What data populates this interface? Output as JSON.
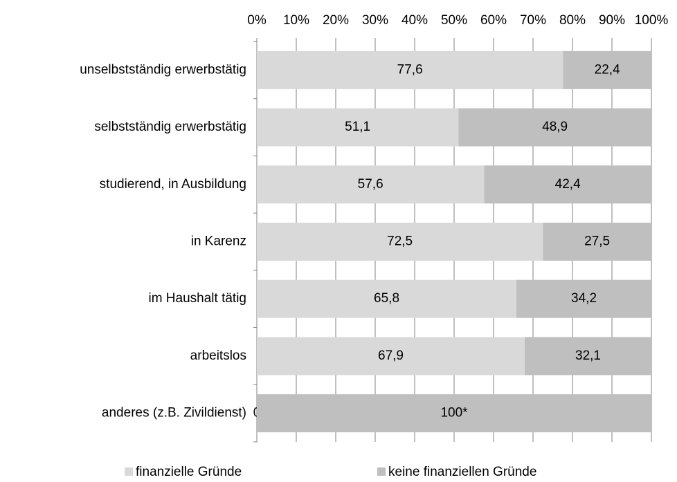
{
  "chart_data": {
    "type": "stacked-bar-horizontal",
    "categories": [
      "unselbstständig erwerbstätig",
      "selbstständig erwerbstätig",
      "studierend, in Ausbildung",
      "in Karenz",
      "im Haushalt tätig",
      "arbeitslos",
      "anderes (z.B. Zivildienst)"
    ],
    "series": [
      {
        "name": "finanzielle Gründe",
        "color": "#d9d9d9",
        "values": [
          77.6,
          51.1,
          57.6,
          72.5,
          65.8,
          67.9,
          0
        ],
        "value_labels": [
          "77,6",
          "51,1",
          "57,6",
          "72,5",
          "65,8",
          "67,9",
          "0"
        ]
      },
      {
        "name": "keine finanziellen Gründe",
        "color": "#bfbfbf",
        "values": [
          22.4,
          48.9,
          42.4,
          27.5,
          34.2,
          32.1,
          100
        ],
        "value_labels": [
          "22,4",
          "48,9",
          "42,4",
          "27,5",
          "34,2",
          "32,1",
          "100*"
        ]
      }
    ],
    "xlim": [
      0,
      100
    ],
    "xticks": [
      {
        "value": 0,
        "label": "0%"
      },
      {
        "value": 10,
        "label": "10%"
      },
      {
        "value": 20,
        "label": "20%"
      },
      {
        "value": 30,
        "label": "30%"
      },
      {
        "value": 40,
        "label": "40%"
      },
      {
        "value": 50,
        "label": "50%"
      },
      {
        "value": 60,
        "label": "60%"
      },
      {
        "value": 70,
        "label": "70%"
      },
      {
        "value": 80,
        "label": "80%"
      },
      {
        "value": 90,
        "label": "90%"
      },
      {
        "value": 100,
        "label": "100%"
      }
    ],
    "grid": true,
    "legend": "bottom"
  }
}
